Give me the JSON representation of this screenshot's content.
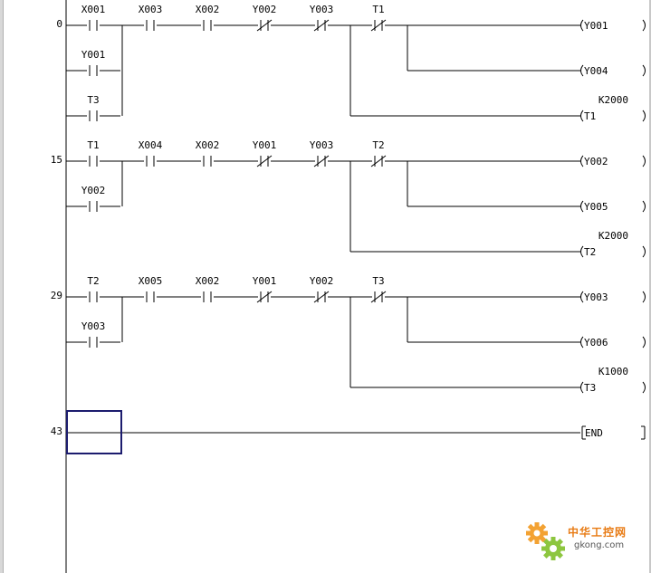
{
  "rungs": [
    {
      "step": "0",
      "main": [
        {
          "label": "X001",
          "type": "NO"
        },
        {
          "label": "X003",
          "type": "NO"
        },
        {
          "label": "X002",
          "type": "NO"
        },
        {
          "label": "Y002",
          "type": "NC"
        },
        {
          "label": "Y003",
          "type": "NC"
        },
        {
          "label": "T1",
          "type": "NC"
        }
      ],
      "parallel": [
        {
          "label": "Y001",
          "type": "NO"
        },
        {
          "label": "T3",
          "type": "NO"
        }
      ],
      "outputs": [
        {
          "label": "Y001",
          "const": ""
        },
        {
          "label": "Y004",
          "const": ""
        },
        {
          "label": "T1",
          "const": "K2000"
        }
      ]
    },
    {
      "step": "15",
      "main": [
        {
          "label": "T1",
          "type": "NO"
        },
        {
          "label": "X004",
          "type": "NO"
        },
        {
          "label": "X002",
          "type": "NO"
        },
        {
          "label": "Y001",
          "type": "NC"
        },
        {
          "label": "Y003",
          "type": "NC"
        },
        {
          "label": "T2",
          "type": "NC"
        }
      ],
      "parallel": [
        {
          "label": "Y002",
          "type": "NO"
        }
      ],
      "outputs": [
        {
          "label": "Y002",
          "const": ""
        },
        {
          "label": "Y005",
          "const": ""
        },
        {
          "label": "T2",
          "const": "K2000"
        }
      ]
    },
    {
      "step": "29",
      "main": [
        {
          "label": "T2",
          "type": "NO"
        },
        {
          "label": "X005",
          "type": "NO"
        },
        {
          "label": "X002",
          "type": "NO"
        },
        {
          "label": "Y001",
          "type": "NC"
        },
        {
          "label": "Y002",
          "type": "NC"
        },
        {
          "label": "T3",
          "type": "NC"
        }
      ],
      "parallel": [
        {
          "label": "Y003",
          "type": "NO"
        }
      ],
      "outputs": [
        {
          "label": "Y003",
          "const": ""
        },
        {
          "label": "Y006",
          "const": ""
        },
        {
          "label": "T3",
          "const": "K1000"
        }
      ]
    }
  ],
  "end_rung": {
    "step": "43",
    "label": "END"
  },
  "colors": {
    "cursor": "#1c1c6e",
    "line": "#000000",
    "watermark": "#e87b14"
  },
  "watermark": {
    "cn": "中华工控网",
    "en": "gkong.com"
  }
}
